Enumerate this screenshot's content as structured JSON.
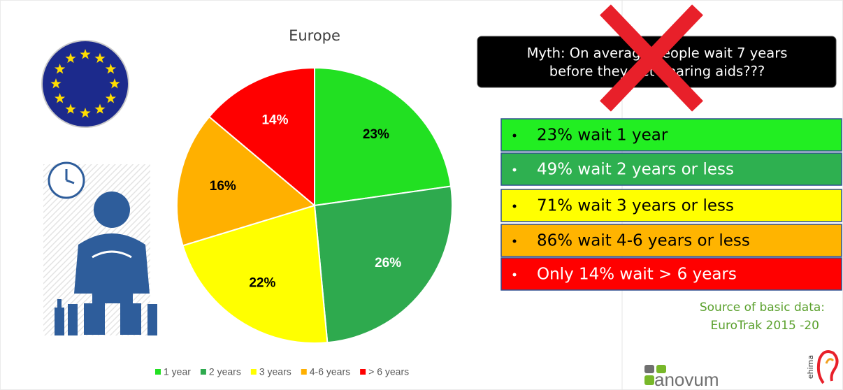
{
  "chart_data": {
    "type": "pie",
    "title": "Europe",
    "categories": [
      "1 year",
      "2 years",
      "3 years",
      "4-6 years",
      "> 6 years"
    ],
    "values": [
      23,
      26,
      22,
      16,
      14
    ],
    "value_labels": [
      "23%",
      "26%",
      "22%",
      "16%",
      "14%"
    ],
    "colors": [
      "#22e022",
      "#2eaa4e",
      "#ffff00",
      "#ffb000",
      "#ff0000"
    ],
    "label_colors": [
      "#000000",
      "#ffffff",
      "#000000",
      "#000000",
      "#ffffff"
    ]
  },
  "myth": {
    "lines": [
      "Myth: On average people wait 7 years",
      "before they get hearing aids???"
    ]
  },
  "bullets": [
    {
      "text": "23% wait 1 year",
      "color": "#22ee22",
      "text_color": "#000000"
    },
    {
      "text": "49% wait 2 years or less",
      "color": "#2eb050",
      "text_color": "#ffffff"
    },
    {
      "text": "71% wait 3 years or less",
      "color": "#ffff00",
      "text_color": "#000000"
    },
    {
      "text": "86% wait 4-6 years or less",
      "color": "#ffb400",
      "text_color": "#000000"
    },
    {
      "text": "Only 14% wait > 6 years",
      "color": "#ff0000",
      "text_color": "#ffffff"
    }
  ],
  "source": {
    "lines": [
      "Source of basic data:",
      "EuroTrak 2015 -20"
    ]
  },
  "logos": {
    "anovum": "anovum",
    "ehima": "ehima"
  }
}
